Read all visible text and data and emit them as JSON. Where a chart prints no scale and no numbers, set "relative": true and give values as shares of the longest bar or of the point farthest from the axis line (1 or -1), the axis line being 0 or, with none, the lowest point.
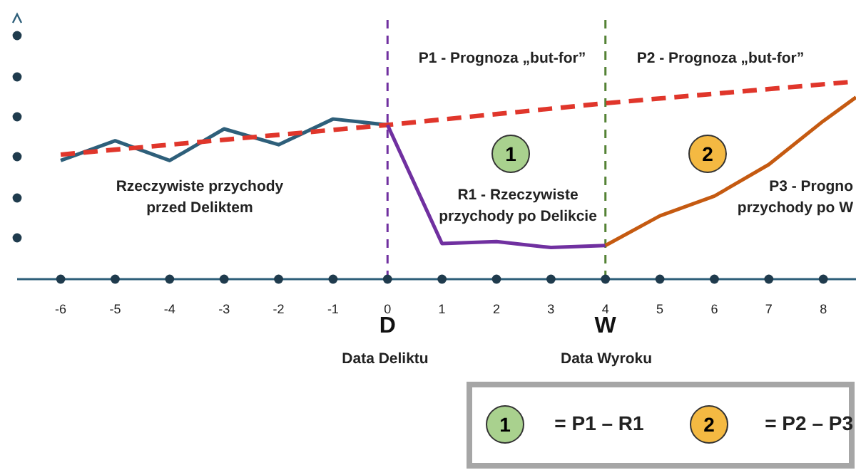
{
  "chart_data": {
    "type": "line",
    "relative": true,
    "xlim": [
      -6.8,
      8.6
    ],
    "xticks": [
      -6,
      -5,
      -4,
      -3,
      -2,
      -1,
      0,
      1,
      2,
      3,
      4,
      5,
      6,
      7,
      8
    ],
    "marker": "none",
    "series": [
      {
        "color": "#2e5f7a",
        "line_style": "solid",
        "x": [
          -6,
          -5,
          -4,
          -3,
          -2,
          -1,
          0
        ],
        "values": [
          0.6,
          0.7,
          0.6,
          0.76,
          0.68,
          0.81,
          0.78
        ]
      },
      {
        "color": "#e0362b",
        "line_style": "dashed",
        "x": [
          -6,
          0,
          4,
          8.6
        ],
        "values": [
          0.63,
          0.78,
          0.89,
          1
        ]
      },
      {
        "color": "#7030a0",
        "line_style": "solid",
        "x": [
          0,
          1,
          2,
          3,
          4
        ],
        "values": [
          0.78,
          0.18,
          0.19,
          0.16,
          0.17
        ]
      },
      {
        "color": "#c55a11",
        "line_style": "solid",
        "x": [
          4,
          5,
          6,
          7,
          8,
          8.6
        ],
        "values": [
          0.17,
          0.32,
          0.42,
          0.58,
          0.8,
          0.92
        ]
      }
    ],
    "ref_lines": [
      {
        "axis": "x",
        "value": 0,
        "label": "D",
        "color": "#7030a0",
        "line_style": "dashed"
      },
      {
        "axis": "x",
        "value": 4,
        "label": "W",
        "color": "#548235",
        "line_style": "dashed"
      }
    ],
    "annotations": [
      "Rzeczywiste przychody\nprzed Deliktem",
      "P1 - Prognoza „but-for”",
      "P2 - Prognoza „but-for”",
      "R1 - Rzeczywiste\nprzychody po Delikcie",
      "P3 - Progno\nprzychody po W",
      "1",
      "2",
      "Data Deliktu",
      "Data Wyroku",
      "1",
      "= P1 – R1",
      "2",
      "= P2 – P3"
    ]
  }
}
